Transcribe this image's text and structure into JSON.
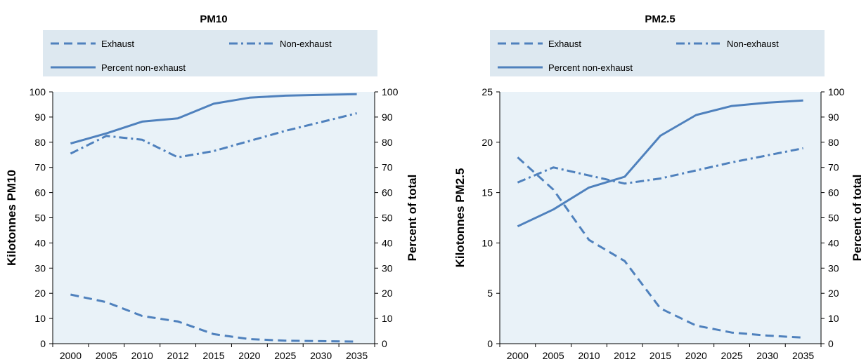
{
  "chart_data": [
    {
      "type": "line",
      "title": "PM10",
      "categories": [
        "2000",
        "2005",
        "2010",
        "2012",
        "2015",
        "2020",
        "2025",
        "2030",
        "2035"
      ],
      "ylabel": "Kilotonnes PM10",
      "y2label": "Percent of total",
      "ylim": [
        0,
        100
      ],
      "yticks": [
        0,
        10,
        20,
        30,
        40,
        50,
        60,
        70,
        80,
        90,
        100
      ],
      "y2lim": [
        0,
        100
      ],
      "y2ticks": [
        0,
        10,
        20,
        30,
        40,
        50,
        60,
        70,
        80,
        90,
        100
      ],
      "grid": false,
      "legend_position": "top",
      "series": [
        {
          "name": "Exhaust",
          "axis": "left",
          "dash": "dashed",
          "values": [
            19.5,
            16.5,
            11,
            8.8,
            3.8,
            1.8,
            1.2,
            1.0,
            0.8
          ]
        },
        {
          "name": "Non-exhaust",
          "axis": "left",
          "dash": "dashdot",
          "values": [
            75.5,
            82.5,
            81,
            74,
            76.5,
            80.5,
            84.5,
            88,
            91.5
          ]
        },
        {
          "name": "Percent non-exhaust",
          "axis": "right",
          "dash": "solid",
          "values": [
            79.5,
            83.5,
            88.2,
            89.5,
            95.3,
            97.7,
            98.5,
            98.8,
            99.1
          ]
        }
      ]
    },
    {
      "type": "line",
      "title": "PM2.5",
      "categories": [
        "2000",
        "2005",
        "2010",
        "2012",
        "2015",
        "2020",
        "2025",
        "2030",
        "2035"
      ],
      "ylabel": "Kilotonnes PM2.5",
      "y2label": "Percent of total",
      "ylim": [
        0,
        25
      ],
      "yticks": [
        0,
        5,
        10,
        15,
        20,
        25
      ],
      "y2lim": [
        0,
        100
      ],
      "y2ticks": [
        0,
        10,
        20,
        30,
        40,
        50,
        60,
        70,
        80,
        90,
        100
      ],
      "grid": false,
      "legend_position": "top",
      "series": [
        {
          "name": "Exhaust",
          "axis": "left",
          "dash": "dashed",
          "values": [
            18.5,
            15.3,
            10.3,
            8.2,
            3.5,
            1.8,
            1.1,
            0.8,
            0.6
          ]
        },
        {
          "name": "Non-exhaust",
          "axis": "left",
          "dash": "dashdot",
          "values": [
            16.0,
            17.5,
            16.7,
            15.9,
            16.4,
            17.2,
            18.0,
            18.7,
            19.4
          ]
        },
        {
          "name": "Percent non-exhaust",
          "axis": "right",
          "dash": "solid",
          "values": [
            46.6,
            53.3,
            62.0,
            66.3,
            82.6,
            90.8,
            94.4,
            95.7,
            96.6
          ]
        }
      ]
    }
  ],
  "colors": {
    "line": "#4f81bd",
    "plot_background": "#e9f2f8",
    "legend_background": "#dde8f0"
  }
}
